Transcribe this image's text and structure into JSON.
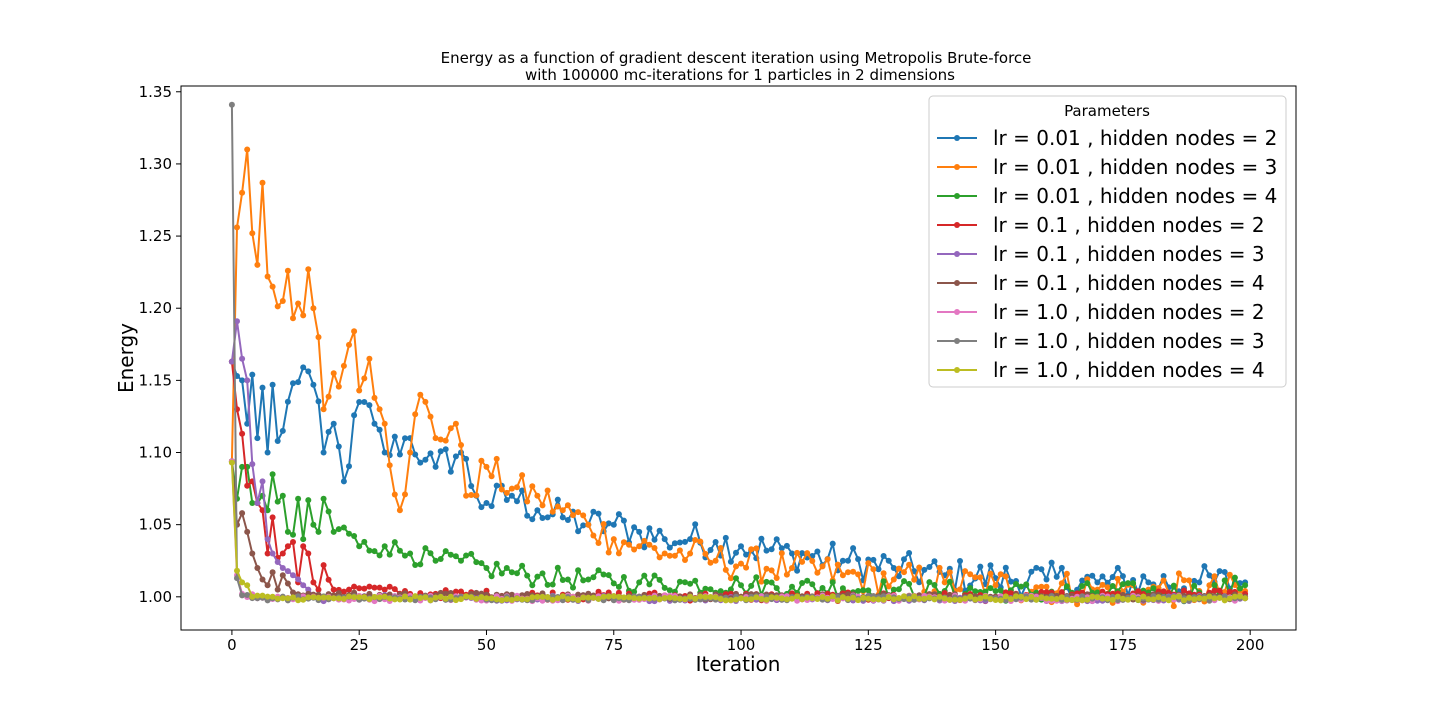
{
  "chart_data": {
    "type": "line",
    "title": "Energy as a function of gradient descent iteration using Metropolis Brute-force",
    "subtitle": "with 100000 mc-iterations for 1 particles in 2 dimensions",
    "xlabel": "Iteration",
    "ylabel": "Energy",
    "xlim": [
      -10,
      209
    ],
    "ylim": [
      0.977,
      1.354
    ],
    "x_ticks": [
      "0",
      "25",
      "50",
      "75",
      "100",
      "125",
      "150",
      "175",
      "200"
    ],
    "y_ticks": [
      "1.00",
      "1.05",
      "1.10",
      "1.15",
      "1.20",
      "1.25",
      "1.30",
      "1.35"
    ],
    "legend": {
      "title": "Parameters",
      "placement": "top-right"
    },
    "marker": "circle",
    "series": [
      {
        "name": "lr = 0.01 , hidden nodes = 2",
        "color": "#1f77b4",
        "anchors": [
          [
            0,
            1.163
          ],
          [
            1,
            1.153
          ],
          [
            2,
            1.15
          ],
          [
            3,
            1.12
          ],
          [
            4,
            1.154
          ],
          [
            5,
            1.11
          ],
          [
            6,
            1.145
          ],
          [
            7,
            1.1
          ],
          [
            8,
            1.147
          ],
          [
            9,
            1.108
          ],
          [
            10,
            1.115
          ],
          [
            12,
            1.148
          ],
          [
            14,
            1.159
          ],
          [
            16,
            1.147
          ],
          [
            18,
            1.1
          ],
          [
            20,
            1.12
          ],
          [
            22,
            1.08
          ],
          [
            25,
            1.135
          ],
          [
            28,
            1.12
          ],
          [
            30,
            1.1
          ],
          [
            35,
            1.11
          ],
          [
            38,
            1.095
          ],
          [
            40,
            1.09
          ],
          [
            45,
            1.1
          ],
          [
            48,
            1.07
          ],
          [
            50,
            1.065
          ],
          [
            55,
            1.07
          ],
          [
            60,
            1.06
          ],
          [
            65,
            1.055
          ],
          [
            70,
            1.05
          ],
          [
            75,
            1.05
          ],
          [
            80,
            1.045
          ],
          [
            85,
            1.04
          ],
          [
            90,
            1.04
          ],
          [
            95,
            1.038
          ],
          [
            100,
            1.035
          ],
          [
            110,
            1.03
          ],
          [
            120,
            1.025
          ],
          [
            130,
            1.02
          ],
          [
            140,
            1.015
          ],
          [
            150,
            1.013
          ],
          [
            160,
            1.012
          ],
          [
            170,
            1.01
          ],
          [
            180,
            1.01
          ],
          [
            190,
            1.01
          ],
          [
            199,
            1.01
          ]
        ],
        "noise": 0.012
      },
      {
        "name": "lr = 0.01 , hidden nodes = 3",
        "color": "#ff7f0e",
        "anchors": [
          [
            0,
            1.094
          ],
          [
            1,
            1.256
          ],
          [
            2,
            1.28
          ],
          [
            3,
            1.31
          ],
          [
            4,
            1.252
          ],
          [
            5,
            1.23
          ],
          [
            6,
            1.287
          ],
          [
            7,
            1.222
          ],
          [
            8,
            1.215
          ],
          [
            10,
            1.205
          ],
          [
            11,
            1.226
          ],
          [
            12,
            1.193
          ],
          [
            14,
            1.195
          ],
          [
            15,
            1.227
          ],
          [
            16,
            1.2
          ],
          [
            17,
            1.18
          ],
          [
            18,
            1.13
          ],
          [
            20,
            1.155
          ],
          [
            22,
            1.16
          ],
          [
            24,
            1.184
          ],
          [
            25,
            1.143
          ],
          [
            27,
            1.165
          ],
          [
            29,
            1.13
          ],
          [
            30,
            1.12
          ],
          [
            33,
            1.06
          ],
          [
            35,
            1.1
          ],
          [
            37,
            1.14
          ],
          [
            40,
            1.11
          ],
          [
            44,
            1.12
          ],
          [
            46,
            1.07
          ],
          [
            50,
            1.09
          ],
          [
            55,
            1.075
          ],
          [
            60,
            1.07
          ],
          [
            65,
            1.06
          ],
          [
            70,
            1.05
          ],
          [
            75,
            1.04
          ],
          [
            80,
            1.035
          ],
          [
            85,
            1.03
          ],
          [
            90,
            1.03
          ],
          [
            95,
            1.025
          ],
          [
            100,
            1.023
          ],
          [
            110,
            1.02
          ],
          [
            120,
            1.015
          ],
          [
            130,
            1.012
          ],
          [
            140,
            1.01
          ],
          [
            150,
            1.008
          ],
          [
            160,
            1.007
          ],
          [
            170,
            1.005
          ],
          [
            180,
            1.005
          ],
          [
            190,
            1.004
          ],
          [
            199,
            1.004
          ]
        ],
        "noise": 0.012
      },
      {
        "name": "lr = 0.01 , hidden nodes = 4",
        "color": "#2ca02c",
        "anchors": [
          [
            0,
            1.094
          ],
          [
            1,
            1.068
          ],
          [
            2,
            1.09
          ],
          [
            3,
            1.09
          ],
          [
            4,
            1.065
          ],
          [
            5,
            1.065
          ],
          [
            6,
            1.07
          ],
          [
            7,
            1.06
          ],
          [
            8,
            1.085
          ],
          [
            9,
            1.066
          ],
          [
            10,
            1.07
          ],
          [
            11,
            1.045
          ],
          [
            12,
            1.043
          ],
          [
            13,
            1.068
          ],
          [
            14,
            1.04
          ],
          [
            15,
            1.067
          ],
          [
            16,
            1.05
          ],
          [
            17,
            1.045
          ],
          [
            18,
            1.068
          ],
          [
            20,
            1.045
          ],
          [
            22,
            1.048
          ],
          [
            25,
            1.035
          ],
          [
            30,
            1.035
          ],
          [
            35,
            1.03
          ],
          [
            40,
            1.025
          ],
          [
            45,
            1.025
          ],
          [
            50,
            1.02
          ],
          [
            55,
            1.017
          ],
          [
            60,
            1.014
          ],
          [
            70,
            1.012
          ],
          [
            80,
            1.01
          ],
          [
            90,
            1.009
          ],
          [
            100,
            1.008
          ],
          [
            110,
            1.007
          ],
          [
            120,
            1.006
          ],
          [
            130,
            1.005
          ],
          [
            140,
            1.004
          ],
          [
            150,
            1.004
          ],
          [
            160,
            1.003
          ],
          [
            170,
            1.003
          ],
          [
            180,
            1.003
          ],
          [
            190,
            1.003
          ],
          [
            199,
            1.008
          ]
        ],
        "noise": 0.007
      },
      {
        "name": "lr = 0.1 , hidden nodes = 2",
        "color": "#d62728",
        "anchors": [
          [
            0,
            1.163
          ],
          [
            1,
            1.13
          ],
          [
            2,
            1.113
          ],
          [
            3,
            1.077
          ],
          [
            4,
            1.08
          ],
          [
            5,
            1.065
          ],
          [
            6,
            1.06
          ],
          [
            7,
            1.03
          ],
          [
            8,
            1.055
          ],
          [
            9,
            1.027
          ],
          [
            10,
            1.03
          ],
          [
            11,
            1.035
          ],
          [
            12,
            1.038
          ],
          [
            13,
            1.01
          ],
          [
            14,
            1.035
          ],
          [
            15,
            1.03
          ],
          [
            16,
            1.01
          ],
          [
            17,
            1.005
          ],
          [
            18,
            1.022
          ],
          [
            20,
            1.005
          ],
          [
            25,
            1.006
          ],
          [
            30,
            1.005
          ],
          [
            35,
            1.002
          ],
          [
            40,
            1.002
          ],
          [
            60,
            1.001
          ],
          [
            100,
            1.0
          ],
          [
            150,
            1.0
          ],
          [
            199,
            1.002
          ]
        ],
        "noise": 0.003
      },
      {
        "name": "lr = 0.1 , hidden nodes = 3",
        "color": "#9467bd",
        "anchors": [
          [
            0,
            1.163
          ],
          [
            1,
            1.191
          ],
          [
            2,
            1.165
          ],
          [
            3,
            1.15
          ],
          [
            4,
            1.092
          ],
          [
            5,
            1.065
          ],
          [
            6,
            1.08
          ],
          [
            7,
            1.04
          ],
          [
            8,
            1.03
          ],
          [
            10,
            1.02
          ],
          [
            12,
            1.015
          ],
          [
            15,
            1.005
          ],
          [
            18,
            0.997
          ],
          [
            20,
            1.0
          ],
          [
            40,
            0.999
          ],
          [
            100,
            0.999
          ],
          [
            150,
            0.999
          ],
          [
            199,
            0.999
          ]
        ],
        "noise": 0.002
      },
      {
        "name": "lr = 0.1 , hidden nodes = 4",
        "color": "#8c564b",
        "anchors": [
          [
            0,
            1.094
          ],
          [
            1,
            1.05
          ],
          [
            2,
            1.058
          ],
          [
            3,
            1.045
          ],
          [
            4,
            1.03
          ],
          [
            5,
            1.02
          ],
          [
            6,
            1.012
          ],
          [
            7,
            1.008
          ],
          [
            8,
            1.017
          ],
          [
            9,
            1.005
          ],
          [
            10,
            1.015
          ],
          [
            12,
            1.003
          ],
          [
            15,
            1.002
          ],
          [
            20,
            1.001
          ],
          [
            40,
            1.001
          ],
          [
            100,
            1.0
          ],
          [
            150,
            1.0
          ],
          [
            199,
            1.0
          ]
        ],
        "noise": 0.002
      },
      {
        "name": "lr = 1.0 , hidden nodes = 2",
        "color": "#e377c2",
        "anchors": [
          [
            0,
            1.094
          ],
          [
            1,
            1.015
          ],
          [
            2,
            1.002
          ],
          [
            5,
            0.999
          ],
          [
            20,
            0.999
          ],
          [
            100,
            0.999
          ],
          [
            150,
            0.999
          ],
          [
            199,
            0.999
          ]
        ],
        "noise": 0.002
      },
      {
        "name": "lr = 1.0 , hidden nodes = 3",
        "color": "#7f7f7f",
        "anchors": [
          [
            0,
            1.341
          ],
          [
            1,
            1.013
          ],
          [
            2,
            1.001
          ],
          [
            5,
            0.999
          ],
          [
            20,
            0.999
          ],
          [
            100,
            0.999
          ],
          [
            150,
            0.999
          ],
          [
            199,
            0.999
          ]
        ],
        "noise": 0.0015
      },
      {
        "name": "lr = 1.0 , hidden nodes = 4",
        "color": "#bcbd22",
        "anchors": [
          [
            0,
            1.093
          ],
          [
            1,
            1.018
          ],
          [
            2,
            1.01
          ],
          [
            3,
            1.008
          ],
          [
            4,
            1.0
          ],
          [
            10,
            0.999
          ],
          [
            50,
            0.999
          ],
          [
            100,
            0.999
          ],
          [
            199,
            0.999
          ]
        ],
        "noise": 0.0015
      }
    ]
  }
}
